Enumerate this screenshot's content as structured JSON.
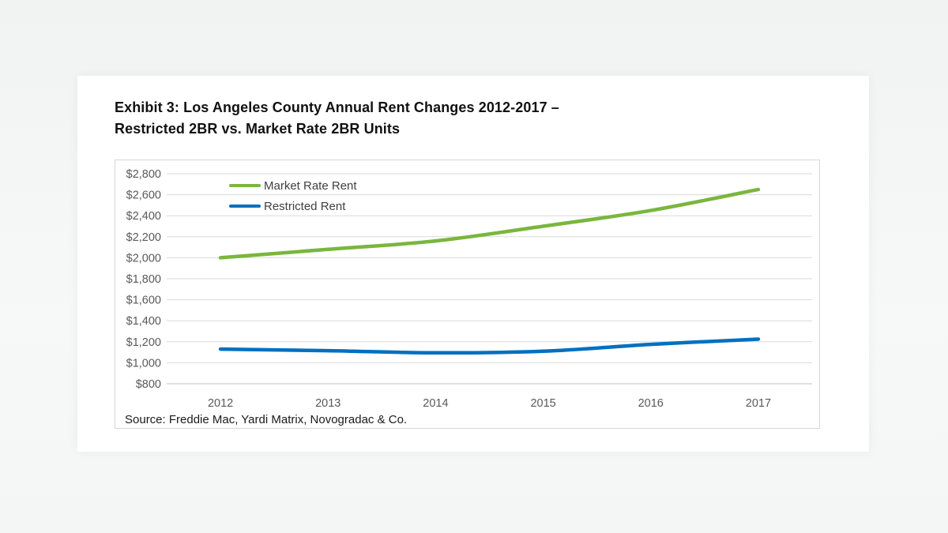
{
  "page": {
    "title_line1": "Exhibit 3: Los Angeles County Annual Rent Changes 2012-2017 –",
    "title_line2": "Restricted 2BR vs. Market Rate 2BR Units",
    "source": "Source: Freddie Mac, Yardi Matrix, Novogradac & Co."
  },
  "colors": {
    "market_rate_line": "#7ab63e",
    "restricted_line": "#0070c0",
    "gridline": "#d9d9d9",
    "axis_line": "#c0c0c0",
    "tick_label": "#595959",
    "legend_label": "#404040",
    "title_text": "#111111",
    "panel_bg": "#ffffff"
  },
  "chart_data": {
    "type": "line",
    "title": "Exhibit 3: Los Angeles County Annual Rent Changes 2012-2017 – Restricted 2BR vs. Market Rate 2BR Units",
    "categories": [
      "2012",
      "2013",
      "2014",
      "2015",
      "2016",
      "2017"
    ],
    "series": [
      {
        "name": "Market Rate Rent",
        "color": "#7ab63e",
        "values": [
          2000,
          2080,
          2160,
          2300,
          2450,
          2650
        ]
      },
      {
        "name": "Restricted Rent",
        "color": "#0070c0",
        "values": [
          1130,
          1115,
          1095,
          1110,
          1175,
          1225
        ]
      }
    ],
    "xlabel": "",
    "ylabel": "",
    "ylim": [
      800,
      2800
    ],
    "ystep": 200,
    "ytick_labels": [
      "$2,800",
      "$2,600",
      "$2,400",
      "$2,200",
      "$2,000",
      "$1,800",
      "$1,600",
      "$1,400",
      "$1,200",
      "$1,000",
      "$800"
    ],
    "grid": true,
    "smoothed_lines": true,
    "legend_position": "inside-top-left",
    "source": "Source: Freddie Mac, Yardi Matrix, Novogradac & Co."
  }
}
